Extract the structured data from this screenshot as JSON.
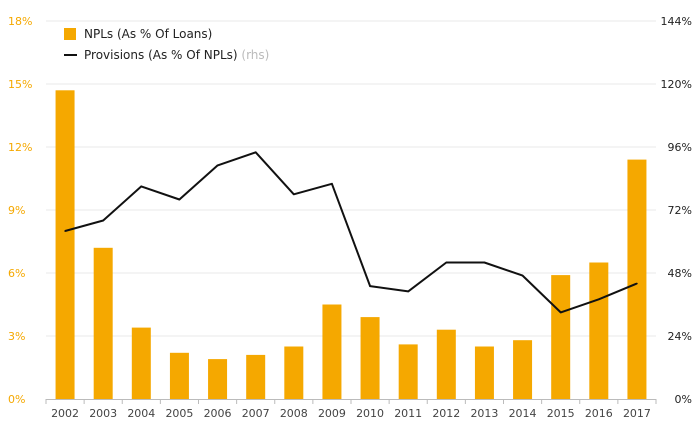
{
  "chart_data": {
    "type": "bar",
    "categories": [
      "2002",
      "2003",
      "2004",
      "2005",
      "2006",
      "2007",
      "2008",
      "2009",
      "2010",
      "2011",
      "2012",
      "2013",
      "2014",
      "2015",
      "2016",
      "2017"
    ],
    "series": [
      {
        "name": "NPLs (As % Of Loans)",
        "type": "bar",
        "axis": "left",
        "color": "#f5a800",
        "values": [
          14.7,
          7.2,
          3.4,
          2.2,
          1.9,
          2.1,
          2.5,
          4.5,
          3.9,
          2.6,
          3.3,
          2.5,
          2.8,
          5.9,
          6.5,
          11.4
        ]
      },
      {
        "name": "Provisions (As % Of NPLs)",
        "name_suffix": "(rhs)",
        "type": "line",
        "axis": "right",
        "color": "#111111",
        "values": [
          64,
          68,
          81,
          76,
          89,
          94,
          78,
          82,
          43,
          41,
          52,
          52,
          47,
          33,
          38,
          44
        ]
      }
    ],
    "y_left": {
      "ylim": [
        0,
        18
      ],
      "ticks": [
        "0%",
        "3%",
        "6%",
        "9%",
        "12%",
        "15%",
        "18%"
      ],
      "color": "#f5a800"
    },
    "y_right": {
      "ylim": [
        0,
        144
      ],
      "ticks": [
        "0%",
        "24%",
        "48%",
        "72%",
        "96%",
        "120%",
        "144%"
      ],
      "color": "#222222"
    },
    "grid": true,
    "legend_position": "top-left"
  }
}
